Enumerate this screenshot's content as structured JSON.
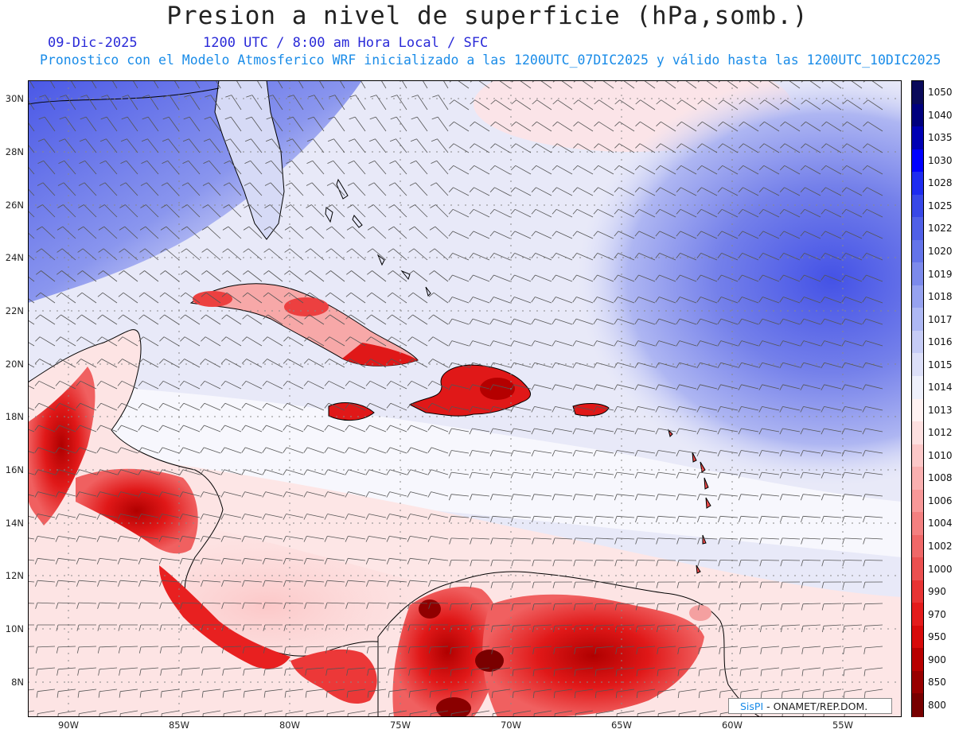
{
  "title": "Presion a nivel de superficie (hPa,somb.)",
  "date": "09-Dic-2025",
  "time_line": "1200 UTC / 8:00 am Hora Local / SFC",
  "forecast_line": "Pronostico con el Modelo Atmosferico WRF inicializado a las 1200UTC_07DIC2025 y válido hasta las  1200UTC_10DIC2025",
  "credit": {
    "brand": "SisPI",
    "separator": " - ",
    "org": "ONAMET/REP.DOM."
  },
  "colors": {
    "land_high_pressure": "#d80000",
    "sea_mid": "#eaeaf8",
    "high_center": "#4a5ae8"
  },
  "lat_labels": [
    "30N",
    "28N",
    "26N",
    "24N",
    "22N",
    "20N",
    "18N",
    "16N",
    "14N",
    "12N",
    "10N",
    "8N"
  ],
  "lon_labels": [
    "90W",
    "85W",
    "80W",
    "75W",
    "70W",
    "65W",
    "60W",
    "55W"
  ],
  "colorbar": {
    "levels": [
      "1050",
      "1040",
      "1035",
      "1030",
      "1028",
      "1025",
      "1022",
      "1020",
      "1019",
      "1018",
      "1017",
      "1016",
      "1015",
      "1014",
      "1013",
      "1012",
      "1010",
      "1008",
      "1006",
      "1004",
      "1002",
      "1000",
      "990",
      "970",
      "950",
      "900",
      "850",
      "800"
    ],
    "colors": [
      "#0a0a5a",
      "#00007e",
      "#0000b4",
      "#0000ff",
      "#1e2cf0",
      "#3848e8",
      "#5060e8",
      "#6474ea",
      "#7c8aec",
      "#96a2f0",
      "#aeb8f4",
      "#c6ccf6",
      "#dcdff8",
      "#eef0fb",
      "#fff2f2",
      "#fde0e0",
      "#fcc8c8",
      "#fab0b0",
      "#f89898",
      "#f48080",
      "#f06868",
      "#ec5050",
      "#e83434",
      "#e41c1c",
      "#d80a0a",
      "#b80000",
      "#980000",
      "#780000"
    ]
  }
}
